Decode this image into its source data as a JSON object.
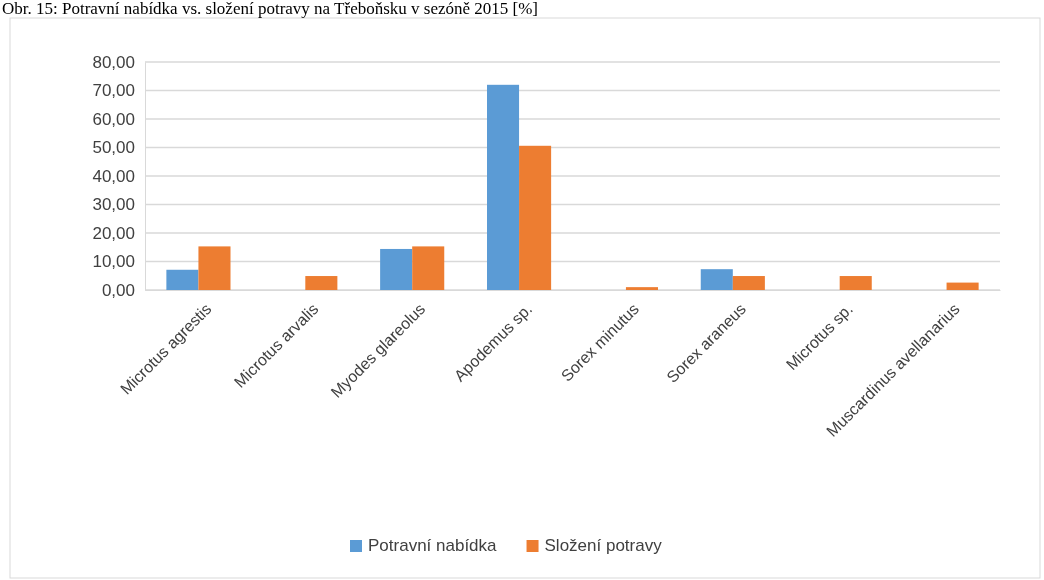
{
  "chart_data": {
    "type": "bar",
    "title": "Obr. 15: Potravní nabídka vs. složení potravy na Třeboňsku v sezóně 2015 [%]",
    "categories": [
      "Microtus agrestis",
      "Microtus arvalis",
      "Myodes glareolus",
      "Apodemus sp.",
      "Sorex minutus",
      "Sorex araneus",
      "Microtus sp.",
      "Muscardinus avellanarius"
    ],
    "series": [
      {
        "name": "Potravní nabídka",
        "color": "#5b9bd5",
        "values": [
          7.1,
          null,
          14.4,
          72,
          null,
          7.3,
          null,
          null
        ]
      },
      {
        "name": "Složení potravy",
        "color": "#ed7d31",
        "values": [
          15.3,
          4.9,
          15.3,
          50.6,
          1,
          4.9,
          4.9,
          2.6
        ]
      }
    ],
    "ylim": [
      0,
      80
    ],
    "yticks": [
      {
        "value": 0,
        "label": "0,00"
      },
      {
        "value": 10,
        "label": "10,00"
      },
      {
        "value": 20,
        "label": "20,00"
      },
      {
        "value": 30,
        "label": "30,00"
      },
      {
        "value": 40,
        "label": "40,00"
      },
      {
        "value": 50,
        "label": "50,00"
      },
      {
        "value": 60,
        "label": "60,00"
      },
      {
        "value": 70,
        "label": "70,00"
      },
      {
        "value": 80,
        "label": "80,00"
      }
    ],
    "grid": "y",
    "legend": "bottom"
  }
}
